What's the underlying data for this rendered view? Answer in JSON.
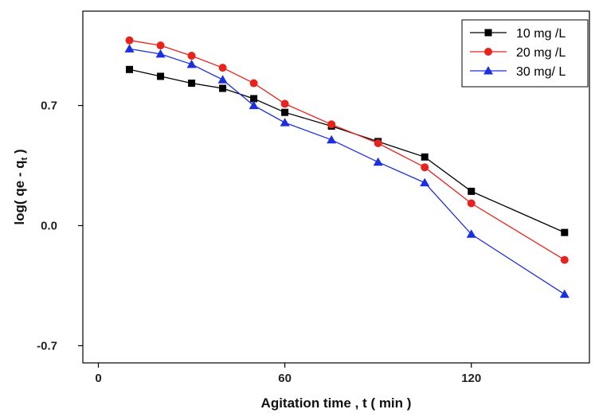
{
  "chart_data": {
    "type": "line",
    "xlabel": "Agitation time , t ( min )",
    "ylabel_main": "log( qe - q",
    "ylabel_sub": "t",
    "ylabel_end": " )",
    "xlim": [
      -5,
      158
    ],
    "ylim": [
      -0.8,
      1.25
    ],
    "x_ticks": [
      0,
      60,
      120
    ],
    "x_tick_labels": [
      "0",
      "60",
      "120"
    ],
    "y_ticks": [
      -0.7,
      0.0,
      0.7
    ],
    "y_tick_labels": [
      "-0.7",
      "0.0",
      "0.7"
    ],
    "legend_position": "top-right",
    "series": [
      {
        "name": "10 mg /L",
        "color": "#000000",
        "marker": "square",
        "x": [
          10,
          20,
          30,
          40,
          50,
          60,
          75,
          90,
          105,
          120,
          150
        ],
        "y": [
          0.91,
          0.87,
          0.83,
          0.8,
          0.74,
          0.66,
          0.58,
          0.49,
          0.4,
          0.2,
          -0.04
        ]
      },
      {
        "name": "20 mg /L",
        "color": "#e8221c",
        "marker": "circle",
        "x": [
          10,
          20,
          30,
          40,
          50,
          60,
          75,
          90,
          105,
          120,
          150
        ],
        "y": [
          1.08,
          1.05,
          0.99,
          0.92,
          0.83,
          0.71,
          0.59,
          0.48,
          0.34,
          0.13,
          -0.2
        ]
      },
      {
        "name": "30 mg/ L",
        "color": "#1c2fe0",
        "marker": "triangle",
        "x": [
          10,
          20,
          30,
          40,
          50,
          60,
          75,
          90,
          105,
          120,
          150
        ],
        "y": [
          1.03,
          1.0,
          0.94,
          0.85,
          0.7,
          0.6,
          0.5,
          0.37,
          0.25,
          -0.05,
          -0.4
        ]
      }
    ]
  }
}
